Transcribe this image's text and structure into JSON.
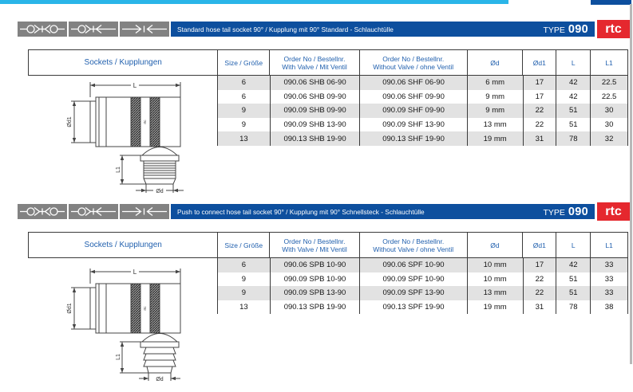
{
  "page": {
    "colors": {
      "cyan_accent": "#2ab5e8",
      "navy_bar": "#0d4f9e",
      "logo_red": "#e5282e",
      "header_text_blue": "#2160ae",
      "icon_box_gray": "#828282",
      "row_shade": "#e2e2e2"
    }
  },
  "brand": {
    "logo_text": "rtc"
  },
  "icons": [
    "double-coupling-icon",
    "coupling-with-plug-icon",
    "inline-plug-icon"
  ],
  "drawing": {
    "dim_length": "L",
    "dim_body_diameter": "Ød1",
    "dim_tail_length": "L1",
    "dim_tail_diameter": "Ød"
  },
  "sections": [
    {
      "title": "Standard hose tail socket 90° / Kupplung mit 90° Standard - Schlauchtülle",
      "type_label": "TYPE",
      "type_number": "090",
      "table": {
        "col1_header": "Sockets / Kupplungen",
        "col_size": "Size / Größe",
        "order_line": "Order No / Bestellnr.",
        "with_valve": "With Valve / Mit Ventil",
        "without_valve": "Without Valve / ohne Ventil",
        "col_od": "Ød",
        "col_od1": "Ød1",
        "col_l": "L",
        "col_l1": "L1",
        "rows": [
          [
            "6",
            "090.06 SHB 06-90",
            "090.06 SHF 06-90",
            "6 mm",
            "17",
            "42",
            "22.5"
          ],
          [
            "6",
            "090.06 SHB 09-90",
            "090.06 SHF 09-90",
            "9 mm",
            "17",
            "42",
            "22.5"
          ],
          [
            "9",
            "090.09 SHB 09-90",
            "090.09 SHF 09-90",
            "9 mm",
            "22",
            "51",
            "30"
          ],
          [
            "9",
            "090.09 SHB 13-90",
            "090.09 SHF 13-90",
            "13 mm",
            "22",
            "51",
            "30"
          ],
          [
            "13",
            "090.13 SHB 19-90",
            "090.13 SHF 19-90",
            "19 mm",
            "31",
            "78",
            "32"
          ]
        ]
      }
    },
    {
      "title": "Push to connect hose tail socket 90° / Kupplung mit 90° Schnellsteck - Schlauchtülle",
      "type_label": "TYPE",
      "type_number": "090",
      "table": {
        "col1_header": "Sockets / Kupplungen",
        "col_size": "Size / Größe",
        "order_line": "Order No / Bestellnr.",
        "with_valve": "With Valve / Mit Ventil",
        "without_valve": "Without Valve / ohne Ventil",
        "col_od": "Ød",
        "col_od1": "Ød1",
        "col_l": "L",
        "col_l1": "L1",
        "rows": [
          [
            "6",
            "090.06 SPB 10-90",
            "090.06 SPF 10-90",
            "10 mm",
            "17",
            "42",
            "33"
          ],
          [
            "9",
            "090.09 SPB 10-90",
            "090.09 SPF 10-90",
            "10 mm",
            "22",
            "51",
            "33"
          ],
          [
            "9",
            "090.09 SPB 13-90",
            "090.09 SPF 13-90",
            "13 mm",
            "22",
            "51",
            "33"
          ],
          [
            "13",
            "090.13 SPB 19-90",
            "090.13 SPF 19-90",
            "19 mm",
            "31",
            "78",
            "38"
          ]
        ]
      }
    }
  ]
}
